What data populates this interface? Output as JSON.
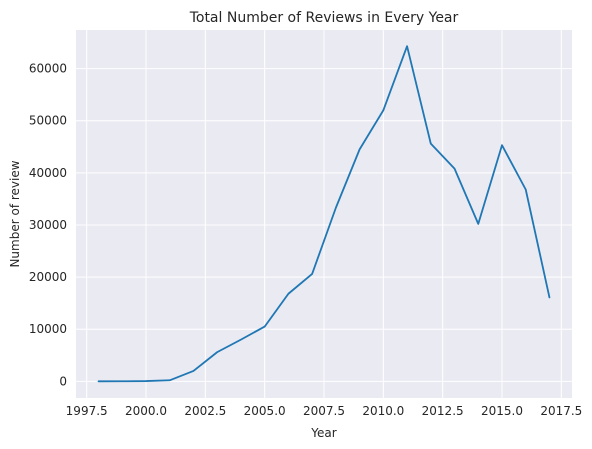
{
  "chart_data": {
    "type": "line",
    "title": "Total Number of Reviews in Every Year",
    "xlabel": "Year",
    "ylabel": "Number of review",
    "xlim": [
      1997.05,
      2017.95
    ],
    "ylim": [
      -3200,
      67400
    ],
    "xticks": [
      1997.5,
      2000.0,
      2002.5,
      2005.0,
      2007.5,
      2010.0,
      2012.5,
      2015.0,
      2017.5
    ],
    "xtick_labels": [
      "1997.5",
      "2000.0",
      "2002.5",
      "2005.0",
      "2007.5",
      "2010.0",
      "2012.5",
      "2015.0",
      "2017.5"
    ],
    "yticks": [
      0,
      10000,
      20000,
      30000,
      40000,
      50000,
      60000
    ],
    "ytick_labels": [
      "0",
      "10000",
      "20000",
      "30000",
      "40000",
      "50000",
      "60000"
    ],
    "grid": true,
    "series": [
      {
        "color": "#1f77b4",
        "x": [
          1998,
          1999,
          2000,
          2001,
          2002,
          2003,
          2004,
          2005,
          2006,
          2007,
          2008,
          2009,
          2010,
          2011,
          2012,
          2013,
          2014,
          2015,
          2016,
          2017
        ],
        "y": [
          0,
          10,
          50,
          200,
          2000,
          5600,
          8000,
          10500,
          16800,
          20600,
          33300,
          44500,
          52000,
          64300,
          45600,
          40800,
          30200,
          45300,
          36800,
          16100
        ]
      }
    ]
  },
  "colors": {
    "plot_background": "#eaeaf2",
    "grid": "#ffffff",
    "text": "#262626"
  }
}
